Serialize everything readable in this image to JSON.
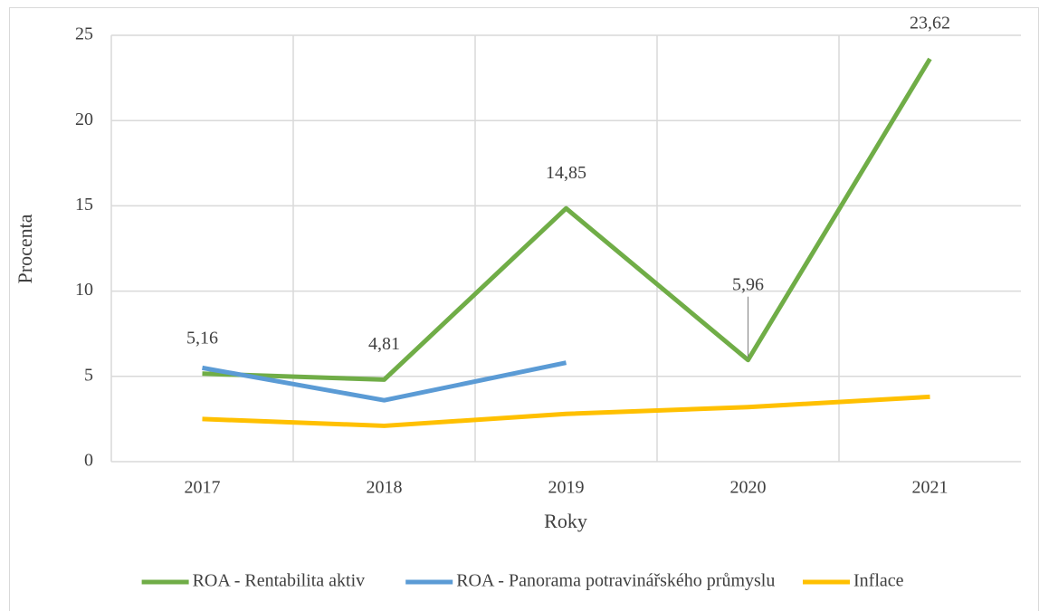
{
  "chart_data": {
    "type": "line",
    "categories": [
      "2017",
      "2018",
      "2019",
      "2020",
      "2021"
    ],
    "series": [
      {
        "name": "ROA - Rentabilita aktiv",
        "color": "#70ad47",
        "values": [
          5.16,
          4.81,
          14.85,
          5.96,
          23.62
        ],
        "value_labels": [
          "5,16",
          "4,81",
          "14,85",
          "5,96",
          "23,62"
        ]
      },
      {
        "name": "ROA - Panorama potravinářského průmyslu",
        "color": "#5b9bd5",
        "values": [
          5.5,
          3.6,
          5.8,
          null,
          null
        ]
      },
      {
        "name": "Inflace",
        "color": "#ffc000",
        "values": [
          2.5,
          2.1,
          2.8,
          3.2,
          3.8
        ]
      }
    ],
    "ylabel": "Procenta",
    "xlabel": "Roky",
    "ylim": [
      0,
      25
    ],
    "yticks": [
      0,
      5,
      10,
      15,
      20,
      25
    ],
    "grid": true,
    "legend": "bottom"
  }
}
